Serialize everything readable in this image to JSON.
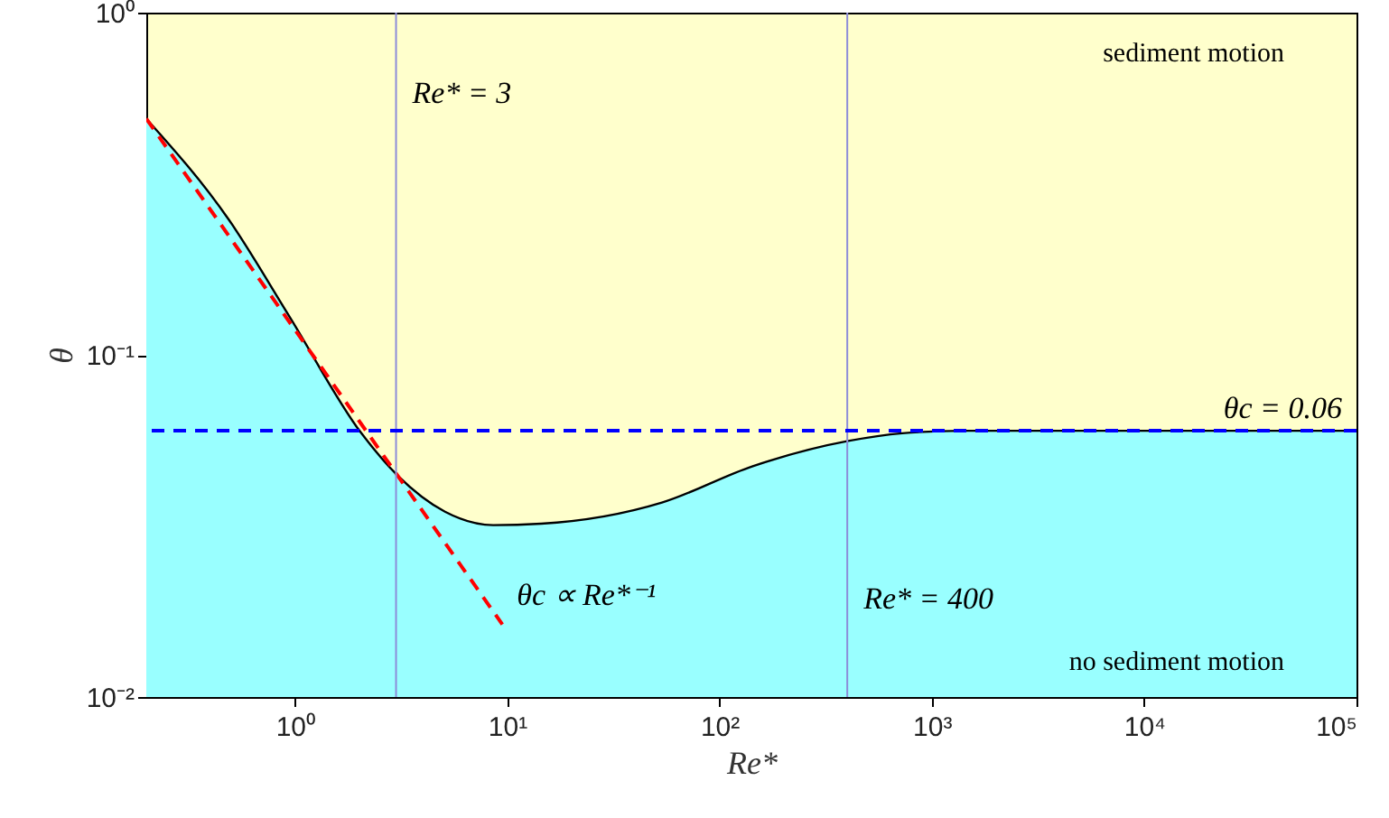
{
  "chart_data": {
    "type": "line",
    "xlabel": "Re*",
    "ylabel": "θ",
    "log": "xy",
    "grid": false,
    "xlim": [
      0.2,
      100000
    ],
    "ylim": [
      0.01,
      1
    ],
    "xticks": [
      {
        "value": 1,
        "label": "10⁰"
      },
      {
        "value": 10,
        "label": "10¹"
      },
      {
        "value": 100,
        "label": "10²"
      },
      {
        "value": 1000,
        "label": "10³"
      },
      {
        "value": 10000,
        "label": "10⁴"
      },
      {
        "value": 100000,
        "label": "10⁵"
      }
    ],
    "yticks": [
      {
        "value": 0.01,
        "label": "10⁻²"
      },
      {
        "value": 0.1,
        "label": "10⁻¹"
      },
      {
        "value": 1,
        "label": "10⁰"
      }
    ],
    "series": [
      {
        "type": "area",
        "color": "#99ffff",
        "x": [
          0.2,
          0.49,
          0.94,
          2.06,
          3.05,
          5.1,
          8.6,
          14.5,
          53.6,
          142.6,
          404,
          726,
          1380,
          100000
        ],
        "values": [
          0.49,
          0.248,
          0.13,
          0.059,
          0.0444,
          0.0348,
          0.0318,
          0.0321,
          0.037,
          0.0472,
          0.056,
          0.059,
          0.06,
          0.06
        ]
      },
      {
        "name": "θc ∝ Re*⁻¹",
        "color": "#ff0000",
        "line_style": "dashed",
        "x": [
          0.2,
          9.5
        ],
        "values": [
          0.49,
          0.0163
        ]
      }
    ],
    "ref_lines": [
      {
        "axis": "x",
        "value": 3,
        "label": "Re* = 3",
        "color": "#8c8cd9",
        "line_style": "solid"
      },
      {
        "axis": "x",
        "value": 400,
        "label": "Re* = 400",
        "color": "#8c8cd9",
        "line_style": "solid"
      },
      {
        "axis": "y",
        "value": 0.06,
        "label": "θc = 0.06",
        "color": "#0000ff",
        "line_style": "dashed"
      }
    ],
    "annotations": [
      "sediment motion",
      "no sediment motion"
    ]
  }
}
